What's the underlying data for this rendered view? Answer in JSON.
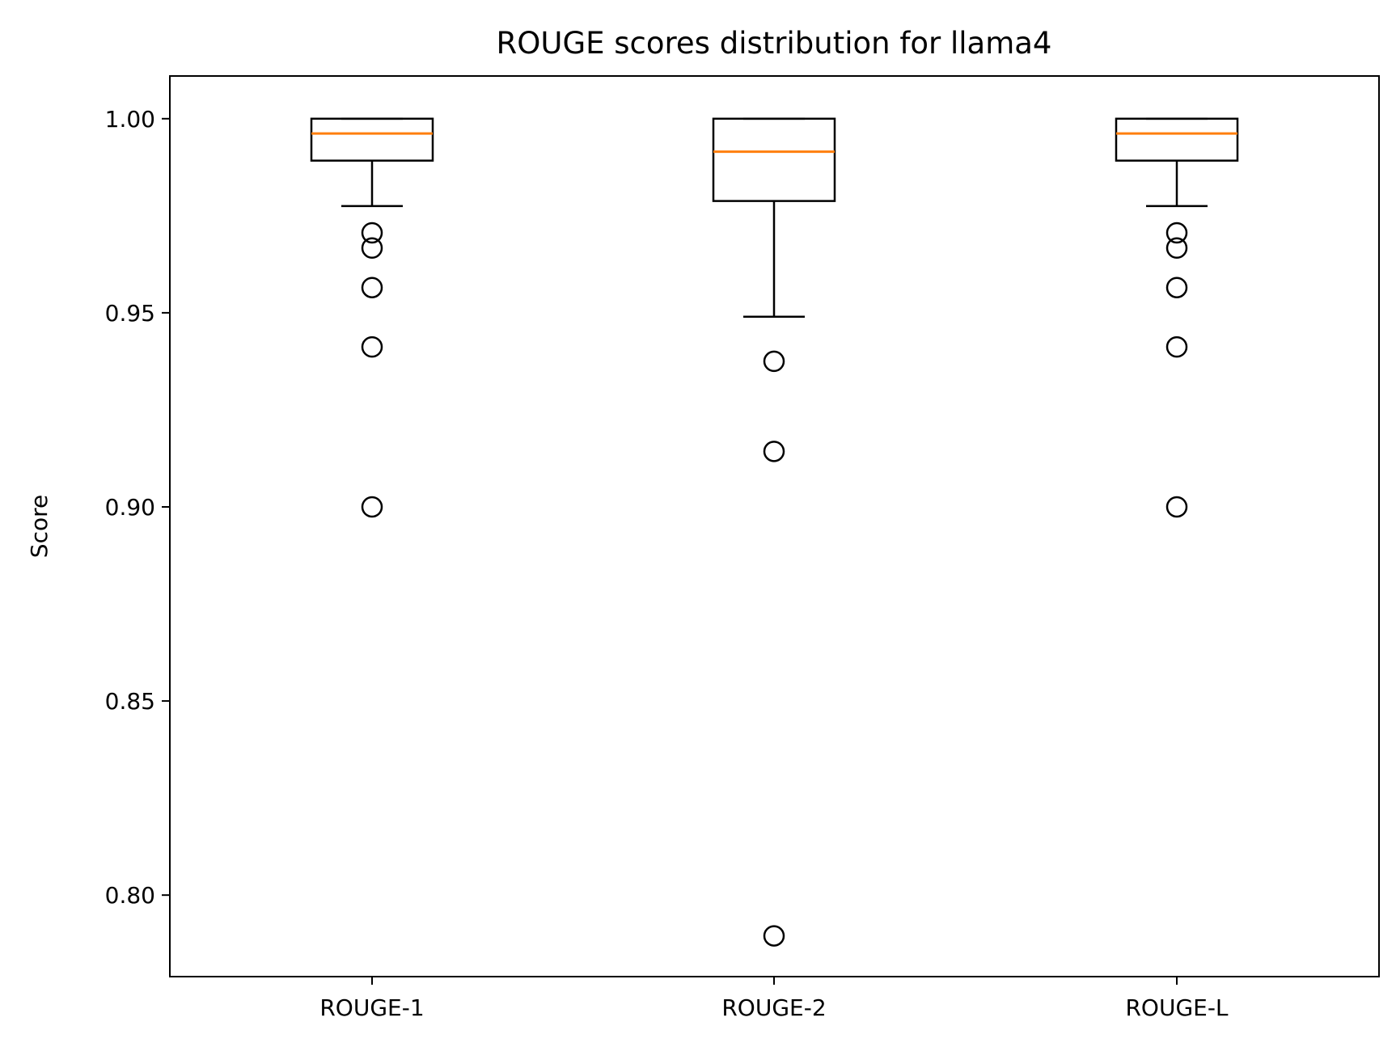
{
  "chart_data": {
    "type": "box",
    "title": "ROUGE scores distribution for llama4",
    "xlabel": "",
    "ylabel": "Score",
    "ylim": [
      0.779,
      1.011
    ],
    "yticks": [
      "0.80",
      "0.85",
      "0.90",
      "0.95",
      "1.00"
    ],
    "categories": [
      "ROUGE-1",
      "ROUGE-2",
      "ROUGE-L"
    ],
    "grid": false,
    "legend": "none",
    "colors": {
      "box": "#000000",
      "median": "#ff7f0e",
      "background": "#ffffff"
    },
    "boxes": [
      {
        "label": "ROUGE-1",
        "whisker_low": 0.9775,
        "q1": 0.9892,
        "median": 0.9962,
        "q3": 1.0,
        "whisker_high": 1.0,
        "outliers": [
          0.9706,
          0.9667,
          0.9565,
          0.9412,
          0.9
        ]
      },
      {
        "label": "ROUGE-2",
        "whisker_low": 0.949,
        "q1": 0.9788,
        "median": 0.9915,
        "q3": 1.0,
        "whisker_high": 1.0,
        "outliers": [
          0.9375,
          0.9143,
          0.7895
        ]
      },
      {
        "label": "ROUGE-L",
        "whisker_low": 0.9775,
        "q1": 0.9892,
        "median": 0.9962,
        "q3": 1.0,
        "whisker_high": 1.0,
        "outliers": [
          0.9706,
          0.9667,
          0.9565,
          0.9412,
          0.9
        ]
      }
    ]
  }
}
